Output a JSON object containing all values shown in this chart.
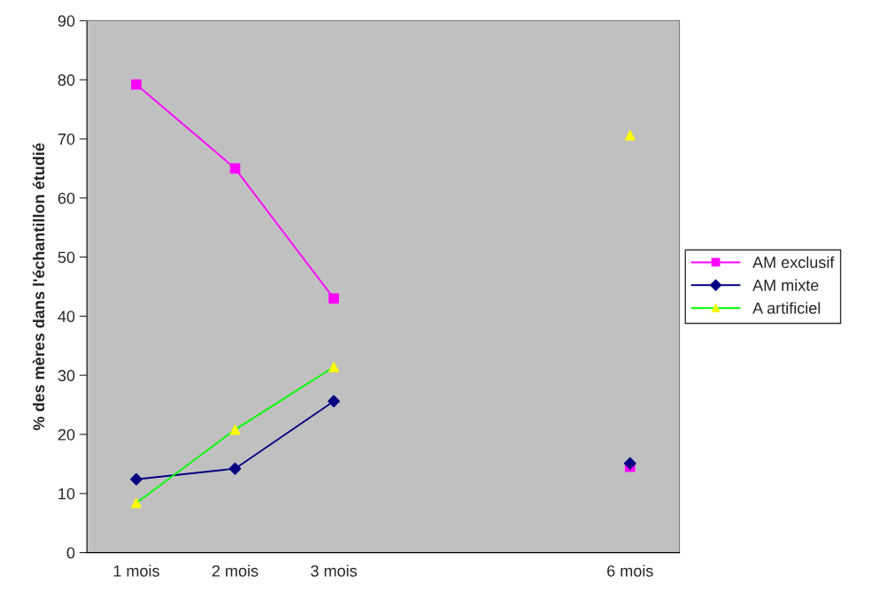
{
  "chart_data": {
    "type": "line",
    "ylabel": "% des mères dans l'échantillon étudié",
    "categories": [
      "1 mois",
      "2 mois",
      "3 mois",
      null,
      null,
      "6 mois"
    ],
    "series": [
      {
        "name": "AM exclusif",
        "color": "#ff00ff",
        "colors": [
          "#ff00ff",
          "#ff00ff",
          "#ff00ff",
          null,
          null,
          "#ff00ff"
        ],
        "marker": "square",
        "values": [
          79.2,
          65.0,
          43.0,
          null,
          null,
          14.5
        ]
      },
      {
        "name": "AM mixte",
        "color": "#000080",
        "colors": [
          "#000080",
          "#000080",
          "#000080",
          null,
          null,
          "#000080"
        ],
        "marker": "diamond",
        "values": [
          12.4,
          14.2,
          25.6,
          null,
          null,
          15.1
        ]
      },
      {
        "name": "A artificiel",
        "color": "#00ff00",
        "colors": [
          "#ffff00",
          "#ffff00",
          "#ffff00",
          null,
          null,
          "#ffff00"
        ],
        "marker": "triangle",
        "values": [
          8.4,
          20.8,
          31.4,
          null,
          null,
          70.6
        ]
      }
    ],
    "ylim": [
      0,
      90
    ],
    "yticks": [
      0,
      10,
      20,
      30,
      40,
      50,
      60,
      70,
      80,
      90
    ],
    "grid": false,
    "legend": "right"
  }
}
